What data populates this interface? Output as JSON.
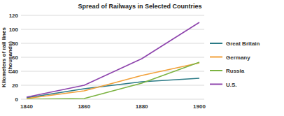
{
  "chart_data": {
    "type": "line",
    "title": "Spread of Railways in Selected Countries",
    "y_label": "Kilometers of rail lines (thousands)",
    "categories": [
      "1840",
      "1860",
      "1880",
      "1900"
    ],
    "series": [
      {
        "name": "Great Britain",
        "color": "#2b7a86",
        "values": [
          2,
          15,
          25,
          30
        ]
      },
      {
        "name": "Germany",
        "color": "#f2a13a",
        "values": [
          1,
          12,
          34,
          52
        ]
      },
      {
        "name": "Russia",
        "color": "#7cb342",
        "values": [
          0,
          1,
          23,
          53
        ]
      },
      {
        "name": "U.S.",
        "color": "#8e44ad",
        "values": [
          3,
          20,
          58,
          110
        ]
      }
    ],
    "ylim": [
      0,
      120
    ],
    "yticks": [
      0,
      20,
      40,
      60,
      80,
      100,
      120
    ],
    "grid": true,
    "legend": "right"
  }
}
